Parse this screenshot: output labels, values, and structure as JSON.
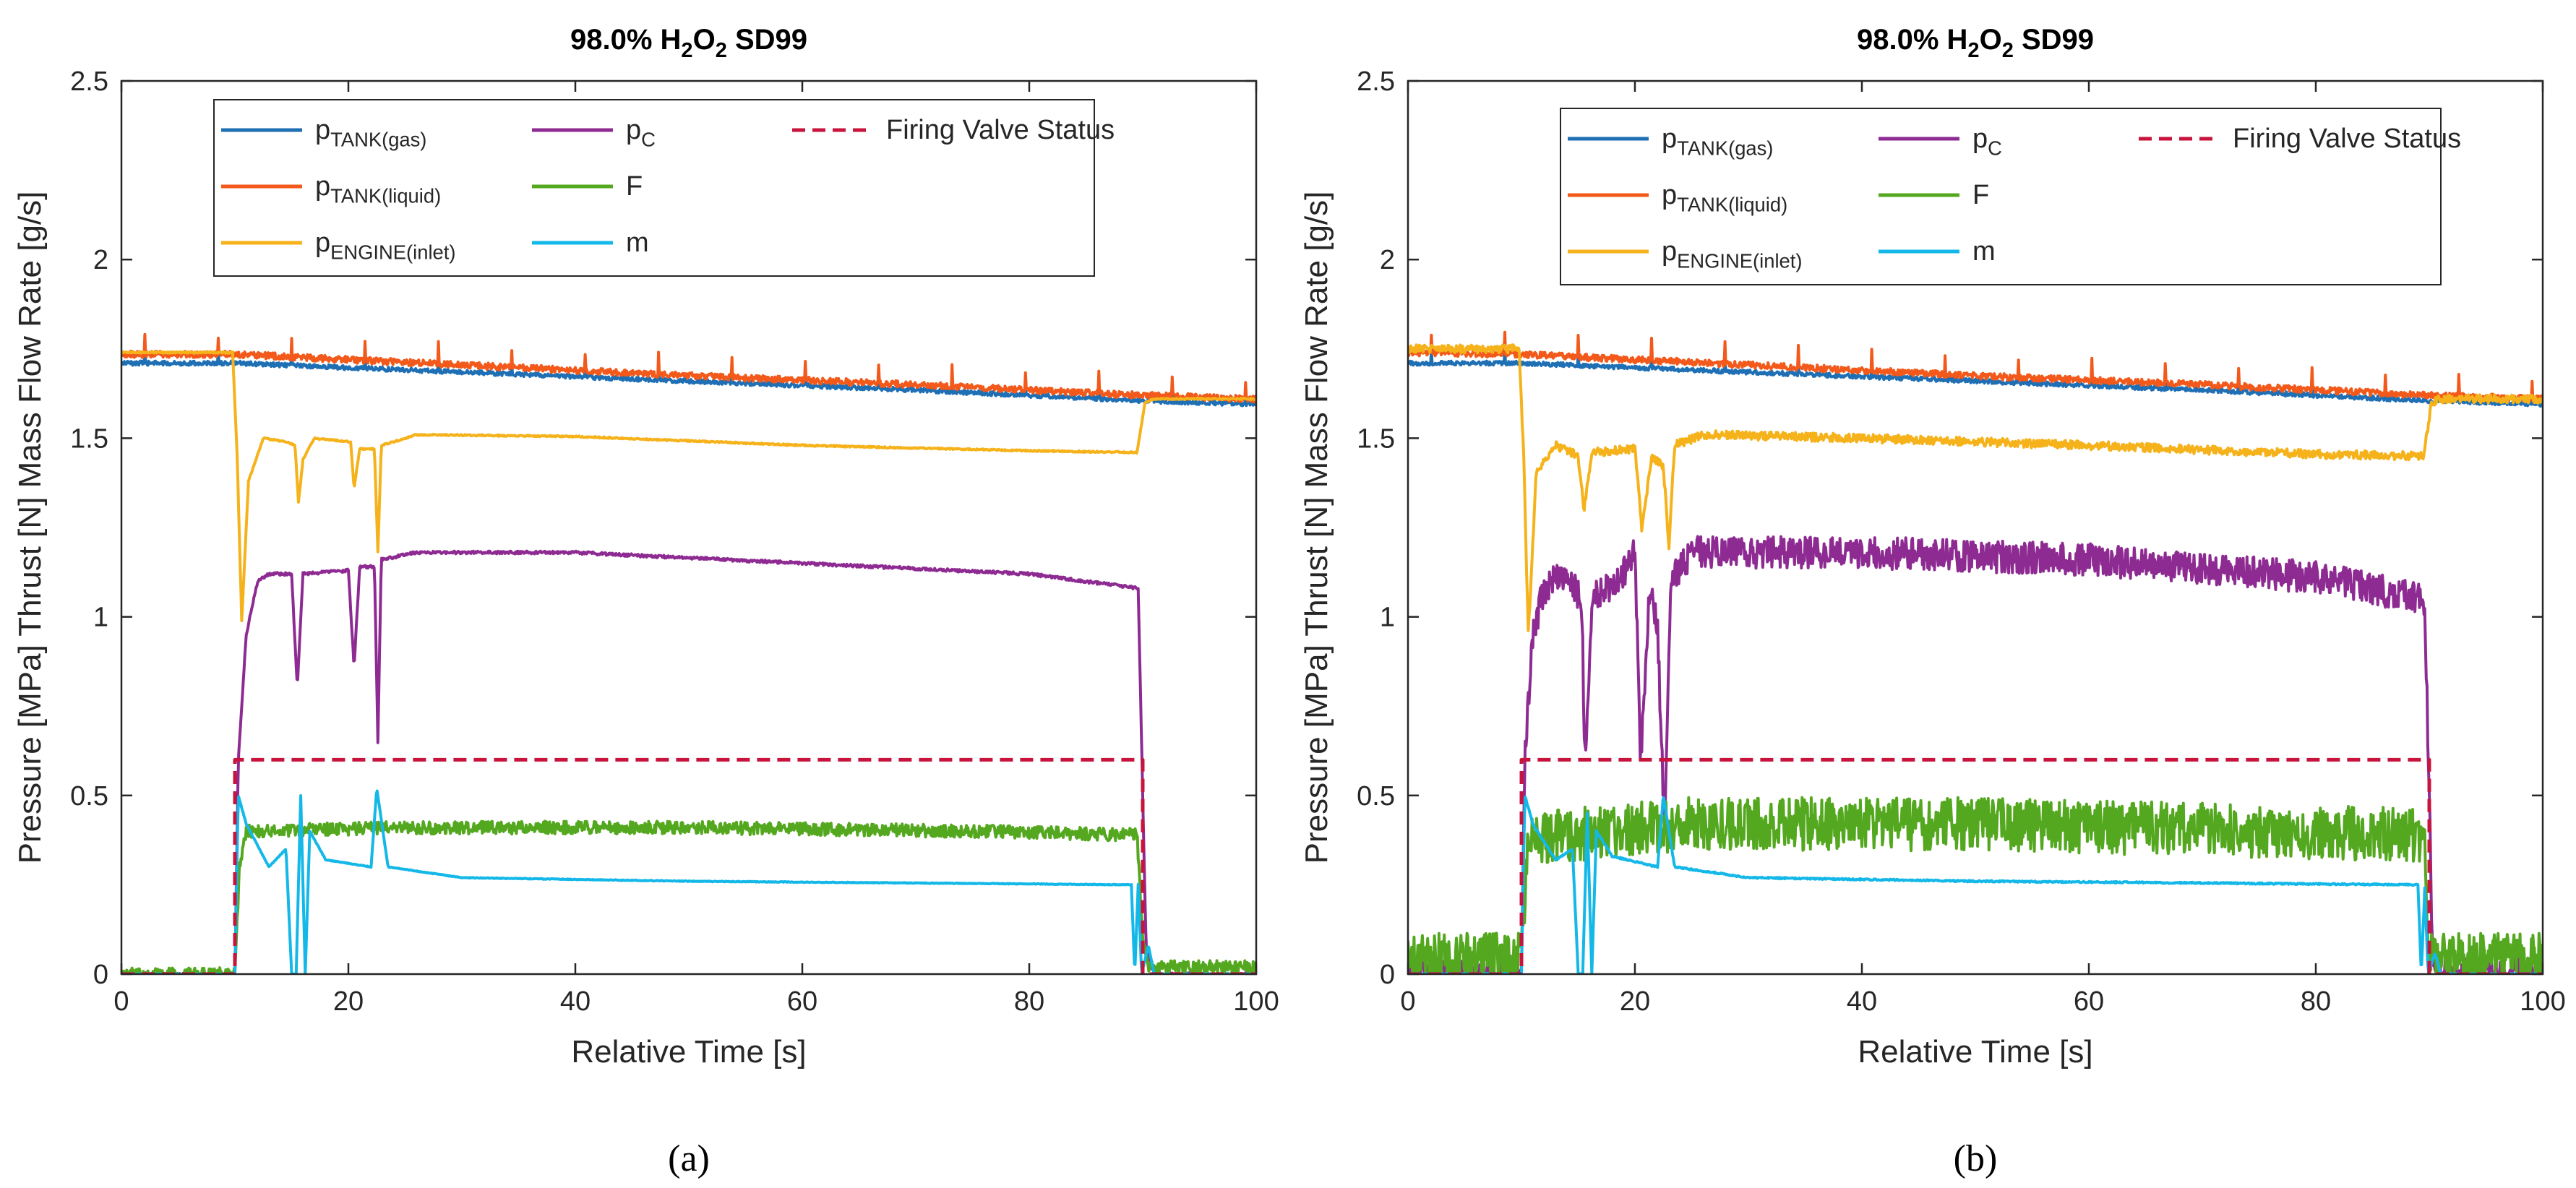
{
  "chart_data": [
    {
      "type": "line",
      "panel_label": "(a)",
      "title": {
        "prefix": "98.0% H",
        "sub1": "2",
        "mid": "O",
        "sub2": "2",
        "suffix": " SD99"
      },
      "xlabel": "Relative Time [s]",
      "ylabel": "Pressure [MPa] Thrust [N] Mass Flow Rate [g/s]",
      "xlim": [
        0,
        100
      ],
      "ylim": [
        0,
        2.5
      ],
      "xticks": [
        "0",
        "20",
        "40",
        "60",
        "80",
        "100"
      ],
      "yticks": [
        "0",
        "0.5",
        "1",
        "1.5",
        "2",
        "2.5"
      ],
      "grid": false,
      "legend_position": "top-left inside",
      "series": [
        {
          "key": "ptank_gas",
          "name": {
            "base": "p",
            "sub": "TANK(gas)"
          },
          "color": "#1f6fb5",
          "dashed": false,
          "noise": 0.006,
          "points": [
            [
              0,
              1.71
            ],
            [
              10,
              1.71
            ],
            [
              30,
              1.685
            ],
            [
              50,
              1.66
            ],
            [
              70,
              1.635
            ],
            [
              90,
              1.605
            ],
            [
              100,
              1.595
            ]
          ]
        },
        {
          "key": "ptank_liquid",
          "name": {
            "base": "p",
            "sub": "TANK(liquid)"
          },
          "color": "#f2591a",
          "dashed": false,
          "noise": 0.009,
          "points": [
            [
              0,
              1.735
            ],
            [
              10,
              1.735
            ],
            [
              30,
              1.705
            ],
            [
              50,
              1.675
            ],
            [
              70,
              1.65
            ],
            [
              90,
              1.62
            ],
            [
              100,
              1.61
            ]
          ]
        },
        {
          "key": "pengine_inlet",
          "name": {
            "base": "p",
            "sub": "ENGINE(inlet)"
          },
          "color": "#f5b21a",
          "dashed": false,
          "noise": 0.002,
          "points": [
            [
              0,
              1.74
            ],
            [
              9.8,
              1.74
            ],
            [
              10.2,
              1.45
            ],
            [
              10.6,
              0.99
            ],
            [
              11.2,
              1.38
            ],
            [
              12.5,
              1.5
            ],
            [
              14.5,
              1.49
            ],
            [
              15.3,
              1.48
            ],
            [
              15.6,
              1.32
            ],
            [
              16,
              1.44
            ],
            [
              17,
              1.5
            ],
            [
              20.2,
              1.49
            ],
            [
              20.5,
              1.36
            ],
            [
              21,
              1.47
            ],
            [
              22.3,
              1.47
            ],
            [
              22.6,
              1.18
            ],
            [
              22.9,
              1.48
            ],
            [
              24,
              1.49
            ],
            [
              26,
              1.51
            ],
            [
              40,
              1.505
            ],
            [
              60,
              1.48
            ],
            [
              80,
              1.465
            ],
            [
              89.5,
              1.46
            ],
            [
              90.2,
              1.6
            ],
            [
              91,
              1.61
            ],
            [
              100,
              1.61
            ]
          ]
        },
        {
          "key": "pc",
          "name": {
            "base": "p",
            "sub": "C"
          },
          "color": "#8e2b92",
          "dashed": false,
          "noise": 0.004,
          "points": [
            [
              0,
              0
            ],
            [
              10,
              0
            ],
            [
              10.3,
              0.6
            ],
            [
              11,
              0.95
            ],
            [
              12,
              1.1
            ],
            [
              13,
              1.12
            ],
            [
              15,
              1.12
            ],
            [
              15.5,
              0.8
            ],
            [
              16,
              1.12
            ],
            [
              20,
              1.13
            ],
            [
              20.5,
              0.86
            ],
            [
              21,
              1.14
            ],
            [
              22.3,
              1.14
            ],
            [
              22.6,
              0.65
            ],
            [
              22.9,
              1.16
            ],
            [
              26,
              1.18
            ],
            [
              40,
              1.18
            ],
            [
              60,
              1.15
            ],
            [
              80,
              1.12
            ],
            [
              89.6,
              1.08
            ],
            [
              90,
              0.5
            ],
            [
              90.3,
              0.07
            ],
            [
              91,
              0
            ],
            [
              100,
              0
            ]
          ]
        },
        {
          "key": "thrust",
          "name": {
            "base": "F",
            "sub": ""
          },
          "color": "#54a81f",
          "dashed": false,
          "noise": 0.018,
          "points": [
            [
              0,
              0
            ],
            [
              10,
              0
            ],
            [
              10.4,
              0.3
            ],
            [
              11,
              0.4
            ],
            [
              25,
              0.41
            ],
            [
              50,
              0.41
            ],
            [
              75,
              0.4
            ],
            [
              89.5,
              0.39
            ],
            [
              90,
              0.1
            ],
            [
              90.5,
              0.02
            ],
            [
              100,
              0.02
            ]
          ]
        },
        {
          "key": "mdot",
          "name": {
            "base": "m",
            "sub": ""
          },
          "color": "#14b8e8",
          "dashed": false,
          "noise": 0.001,
          "points": [
            [
              0,
              0
            ],
            [
              10,
              0
            ],
            [
              10.3,
              0.5
            ],
            [
              11,
              0.42
            ],
            [
              13,
              0.3
            ],
            [
              14.5,
              0.35
            ],
            [
              15,
              0.0
            ],
            [
              15.4,
              0.0
            ],
            [
              15.8,
              0.5
            ],
            [
              16.2,
              0.0
            ],
            [
              16.6,
              0.4
            ],
            [
              18,
              0.32
            ],
            [
              22,
              0.3
            ],
            [
              22.5,
              0.52
            ],
            [
              23.5,
              0.3
            ],
            [
              30,
              0.27
            ],
            [
              50,
              0.26
            ],
            [
              70,
              0.255
            ],
            [
              89,
              0.25
            ],
            [
              89.3,
              0.0
            ],
            [
              89.6,
              0.25
            ],
            [
              89.9,
              0.0
            ],
            [
              90.5,
              0.08
            ],
            [
              91,
              0
            ],
            [
              100,
              0
            ]
          ]
        },
        {
          "key": "firing_valve",
          "name": {
            "base": "Firing Valve Status",
            "sub": ""
          },
          "color": "#c8143c",
          "dashed": true,
          "noise": 0,
          "points": [
            [
              0,
              0
            ],
            [
              10,
              0
            ],
            [
              10,
              0.6
            ],
            [
              90,
              0.6
            ],
            [
              90,
              0
            ],
            [
              100,
              0
            ]
          ]
        }
      ]
    },
    {
      "type": "line",
      "panel_label": "(b)",
      "title": {
        "prefix": "98.0% H",
        "sub1": "2",
        "mid": "O",
        "sub2": "2",
        "suffix": " SD99"
      },
      "xlabel": "Relative Time [s]",
      "ylabel": "Pressure [MPa] Thrust [N] Mass Flow Rate [g/s]",
      "xlim": [
        0,
        100
      ],
      "ylim": [
        0,
        2.5
      ],
      "xticks": [
        "0",
        "20",
        "40",
        "60",
        "80",
        "100"
      ],
      "yticks": [
        "0",
        "0.5",
        "1",
        "1.5",
        "2",
        "2.5"
      ],
      "grid": false,
      "legend_position": "top-right inside",
      "series": [
        {
          "key": "ptank_gas",
          "name": {
            "base": "p",
            "sub": "TANK(gas)"
          },
          "color": "#1f6fb5",
          "dashed": false,
          "noise": 0.006,
          "points": [
            [
              0,
              1.71
            ],
            [
              10,
              1.71
            ],
            [
              30,
              1.685
            ],
            [
              50,
              1.66
            ],
            [
              70,
              1.635
            ],
            [
              90,
              1.605
            ],
            [
              100,
              1.595
            ]
          ]
        },
        {
          "key": "ptank_liquid",
          "name": {
            "base": "p",
            "sub": "TANK(liquid)"
          },
          "color": "#f2591a",
          "dashed": false,
          "noise": 0.009,
          "points": [
            [
              0,
              1.74
            ],
            [
              10,
              1.735
            ],
            [
              30,
              1.705
            ],
            [
              50,
              1.675
            ],
            [
              70,
              1.65
            ],
            [
              90,
              1.62
            ],
            [
              100,
              1.61
            ]
          ]
        },
        {
          "key": "pengine_inlet",
          "name": {
            "base": "p",
            "sub": "ENGINE(inlet)"
          },
          "color": "#f5b21a",
          "dashed": false,
          "noise": 0.012,
          "points": [
            [
              0,
              1.75
            ],
            [
              9.8,
              1.75
            ],
            [
              10.2,
              1.45
            ],
            [
              10.6,
              0.95
            ],
            [
              11.3,
              1.4
            ],
            [
              13,
              1.48
            ],
            [
              15,
              1.45
            ],
            [
              15.5,
              1.3
            ],
            [
              16.2,
              1.46
            ],
            [
              20,
              1.47
            ],
            [
              20.6,
              1.25
            ],
            [
              21.5,
              1.45
            ],
            [
              22.5,
              1.42
            ],
            [
              23,
              1.2
            ],
            [
              23.5,
              1.48
            ],
            [
              26,
              1.51
            ],
            [
              40,
              1.5
            ],
            [
              60,
              1.48
            ],
            [
              80,
              1.455
            ],
            [
              89.5,
              1.45
            ],
            [
              90.2,
              1.6
            ],
            [
              91,
              1.61
            ],
            [
              100,
              1.61
            ]
          ]
        },
        {
          "key": "pc",
          "name": {
            "base": "p",
            "sub": "C"
          },
          "color": "#8e2b92",
          "dashed": false,
          "noise": 0.045,
          "points": [
            [
              0,
              0
            ],
            [
              10,
              0
            ],
            [
              10.3,
              0.6
            ],
            [
              11,
              0.95
            ],
            [
              12,
              1.08
            ],
            [
              14,
              1.12
            ],
            [
              15.3,
              1.05
            ],
            [
              15.6,
              0.6
            ],
            [
              16.2,
              1.05
            ],
            [
              19,
              1.12
            ],
            [
              20,
              1.2
            ],
            [
              20.5,
              0.6
            ],
            [
              21.3,
              1.1
            ],
            [
              22,
              0.95
            ],
            [
              22.6,
              0.42
            ],
            [
              23.2,
              1.1
            ],
            [
              25,
              1.18
            ],
            [
              40,
              1.18
            ],
            [
              60,
              1.16
            ],
            [
              80,
              1.11
            ],
            [
              89.6,
              1.05
            ],
            [
              90,
              0.5
            ],
            [
              90.3,
              0.03
            ],
            [
              91,
              0
            ],
            [
              100,
              0
            ]
          ]
        },
        {
          "key": "thrust",
          "name": {
            "base": "F",
            "sub": ""
          },
          "color": "#54a81f",
          "dashed": false,
          "noise": 0.075,
          "points": [
            [
              0,
              0.04
            ],
            [
              10,
              0.04
            ],
            [
              10.4,
              0.3
            ],
            [
              11,
              0.38
            ],
            [
              25,
              0.42
            ],
            [
              50,
              0.42
            ],
            [
              75,
              0.4
            ],
            [
              89.5,
              0.39
            ],
            [
              90,
              0.1
            ],
            [
              90.5,
              0.04
            ],
            [
              100,
              0.04
            ]
          ]
        },
        {
          "key": "mdot",
          "name": {
            "base": "m",
            "sub": ""
          },
          "color": "#14b8e8",
          "dashed": false,
          "noise": 0.002,
          "points": [
            [
              0,
              0
            ],
            [
              10,
              0
            ],
            [
              10.3,
              0.5
            ],
            [
              11,
              0.42
            ],
            [
              13,
              0.32
            ],
            [
              14.5,
              0.35
            ],
            [
              15,
              0.0
            ],
            [
              15.4,
              0.0
            ],
            [
              15.8,
              0.45
            ],
            [
              16.2,
              0.0
            ],
            [
              16.6,
              0.4
            ],
            [
              18,
              0.33
            ],
            [
              22,
              0.3
            ],
            [
              22.5,
              0.5
            ],
            [
              23.5,
              0.3
            ],
            [
              30,
              0.27
            ],
            [
              50,
              0.26
            ],
            [
              70,
              0.255
            ],
            [
              89,
              0.25
            ],
            [
              89.3,
              0.0
            ],
            [
              89.6,
              0.24
            ],
            [
              89.9,
              0.0
            ],
            [
              90.5,
              0.06
            ],
            [
              91,
              0
            ],
            [
              100,
              0
            ]
          ]
        },
        {
          "key": "firing_valve",
          "name": {
            "base": "Firing Valve Status",
            "sub": ""
          },
          "color": "#c8143c",
          "dashed": true,
          "noise": 0,
          "points": [
            [
              0,
              0
            ],
            [
              10,
              0
            ],
            [
              10,
              0.6
            ],
            [
              90,
              0.6
            ],
            [
              90,
              0
            ],
            [
              100,
              0
            ]
          ]
        }
      ]
    }
  ]
}
